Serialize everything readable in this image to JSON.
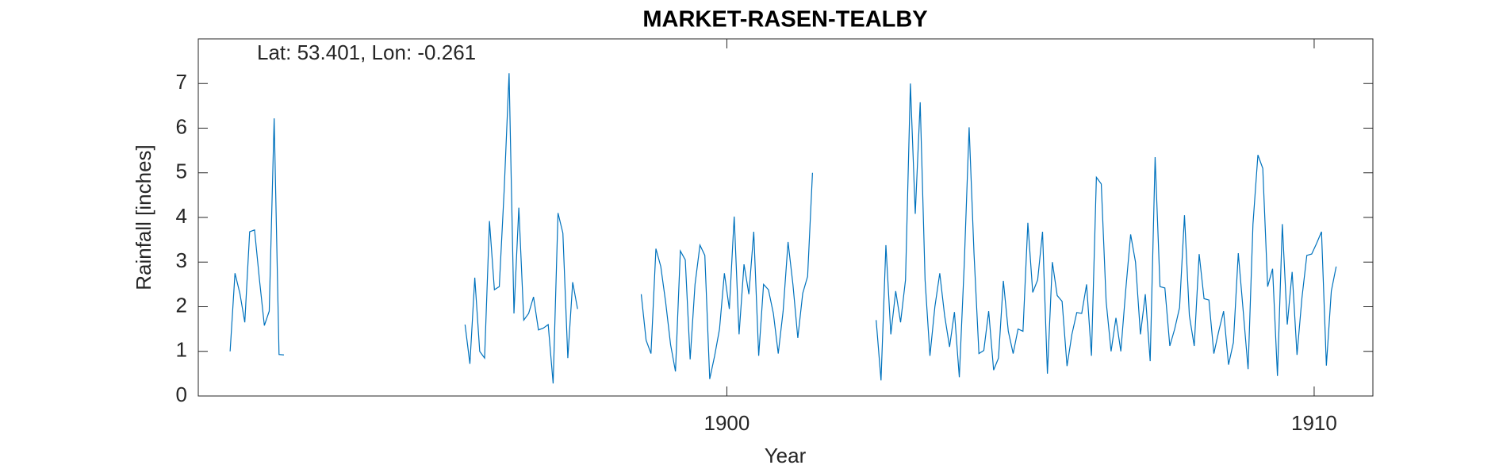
{
  "chart_data": {
    "type": "line",
    "title": "MARKET-RASEN-TEALBY",
    "annotation": "Lat: 53.401, Lon: -0.261",
    "xlabel": "Year",
    "ylabel": "Rainfall [inches]",
    "xlim": [
      1891,
      1911
    ],
    "ylim": [
      0,
      8
    ],
    "xticks": [
      1900,
      1910
    ],
    "yticks": [
      0,
      1,
      2,
      3,
      4,
      5,
      6,
      7
    ],
    "x": [
      1891.542,
      1891.625,
      1891.708,
      1891.792,
      1891.875,
      1891.958,
      1892.042,
      1892.125,
      1892.208,
      1892.292,
      1892.375,
      1892.458,
      1894.0,
      1895.542,
      1895.625,
      1895.708,
      1895.792,
      1895.875,
      1895.958,
      1896.042,
      1896.125,
      1896.208,
      1896.292,
      1896.375,
      1896.458,
      1896.542,
      1896.625,
      1896.708,
      1896.792,
      1896.875,
      1896.958,
      1897.042,
      1897.125,
      1897.208,
      1897.292,
      1897.375,
      1897.458,
      1898.0,
      1898.542,
      1898.625,
      1898.708,
      1898.792,
      1898.875,
      1898.958,
      1899.042,
      1899.125,
      1899.208,
      1899.292,
      1899.375,
      1899.458,
      1899.542,
      1899.625,
      1899.708,
      1899.792,
      1899.875,
      1899.958,
      1900.042,
      1900.125,
      1900.208,
      1900.292,
      1900.375,
      1900.458,
      1900.542,
      1900.625,
      1900.708,
      1900.792,
      1900.875,
      1900.958,
      1901.042,
      1901.125,
      1901.208,
      1901.292,
      1901.375,
      1901.458,
      1902.0,
      1902.542,
      1902.625,
      1902.708,
      1902.792,
      1902.875,
      1902.958,
      1903.042,
      1903.125,
      1903.208,
      1903.292,
      1903.375,
      1903.458,
      1903.542,
      1903.625,
      1903.708,
      1903.792,
      1903.875,
      1903.958,
      1904.042,
      1904.125,
      1904.208,
      1904.292,
      1904.375,
      1904.458,
      1904.542,
      1904.625,
      1904.708,
      1904.792,
      1904.875,
      1904.958,
      1905.042,
      1905.125,
      1905.208,
      1905.292,
      1905.375,
      1905.458,
      1905.542,
      1905.625,
      1905.708,
      1905.792,
      1905.875,
      1905.958,
      1906.042,
      1906.125,
      1906.208,
      1906.292,
      1906.375,
      1906.458,
      1906.542,
      1906.625,
      1906.708,
      1906.792,
      1906.875,
      1906.958,
      1907.042,
      1907.125,
      1907.208,
      1907.292,
      1907.375,
      1907.458,
      1907.542,
      1907.625,
      1907.708,
      1907.792,
      1907.875,
      1907.958,
      1908.042,
      1908.125,
      1908.208,
      1908.292,
      1908.375,
      1908.458,
      1908.542,
      1908.625,
      1908.708,
      1908.792,
      1908.875,
      1908.958,
      1909.042,
      1909.125,
      1909.208,
      1909.292,
      1909.375,
      1909.458,
      1909.542,
      1909.625,
      1909.708,
      1909.792,
      1909.875,
      1909.958,
      1910.042,
      1910.125,
      1910.208,
      1910.292,
      1910.375
    ],
    "series": [
      {
        "name": "Rainfall",
        "color": "#0072bd",
        "values": [
          1.0,
          2.75,
          2.3,
          1.65,
          3.68,
          3.72,
          2.6,
          1.58,
          1.9,
          6.22,
          0.93,
          0.92,
          null,
          1.6,
          0.72,
          2.65,
          1.0,
          0.85,
          3.92,
          2.38,
          2.45,
          4.6,
          7.23,
          1.85,
          4.22,
          1.7,
          1.85,
          2.22,
          1.48,
          1.52,
          1.6,
          0.28,
          4.1,
          3.65,
          0.85,
          2.55,
          1.95,
          null,
          2.28,
          1.25,
          0.95,
          3.3,
          2.9,
          2.1,
          1.15,
          0.55,
          3.25,
          3.05,
          0.82,
          2.5,
          3.38,
          3.15,
          0.38,
          0.9,
          1.5,
          2.75,
          1.95,
          4.02,
          1.38,
          2.95,
          2.28,
          3.68,
          0.9,
          2.5,
          2.38,
          1.85,
          0.95,
          1.9,
          3.45,
          2.5,
          1.3,
          2.3,
          2.68,
          5.0,
          null,
          1.7,
          0.35,
          3.38,
          1.38,
          2.35,
          1.65,
          2.6,
          7.0,
          4.08,
          6.58,
          2.6,
          0.9,
          2.0,
          2.75,
          1.8,
          1.1,
          1.88,
          0.42,
          2.95,
          6.02,
          3.2,
          0.95,
          1.02,
          1.9,
          0.58,
          0.85,
          2.58,
          1.45,
          0.95,
          1.5,
          1.45,
          3.88,
          2.32,
          2.6,
          3.68,
          0.5,
          3.0,
          2.25,
          2.12,
          0.67,
          1.38,
          1.87,
          1.85,
          2.5,
          0.9,
          4.9,
          4.75,
          2.12,
          1.0,
          1.75,
          1.0,
          2.38,
          3.62,
          3.0,
          1.38,
          2.28,
          0.78,
          5.35,
          2.45,
          2.42,
          1.12,
          1.5,
          1.98,
          4.05,
          1.8,
          1.12,
          3.18,
          2.18,
          2.15,
          0.95,
          1.45,
          1.9,
          0.7,
          1.2,
          3.2,
          1.9,
          0.6,
          3.85,
          5.4,
          5.1,
          2.45,
          2.85,
          0.45,
          3.85,
          1.6,
          2.78,
          0.92,
          2.2,
          3.15,
          3.18,
          3.42,
          3.68,
          0.68,
          2.35,
          2.9
        ]
      }
    ]
  }
}
